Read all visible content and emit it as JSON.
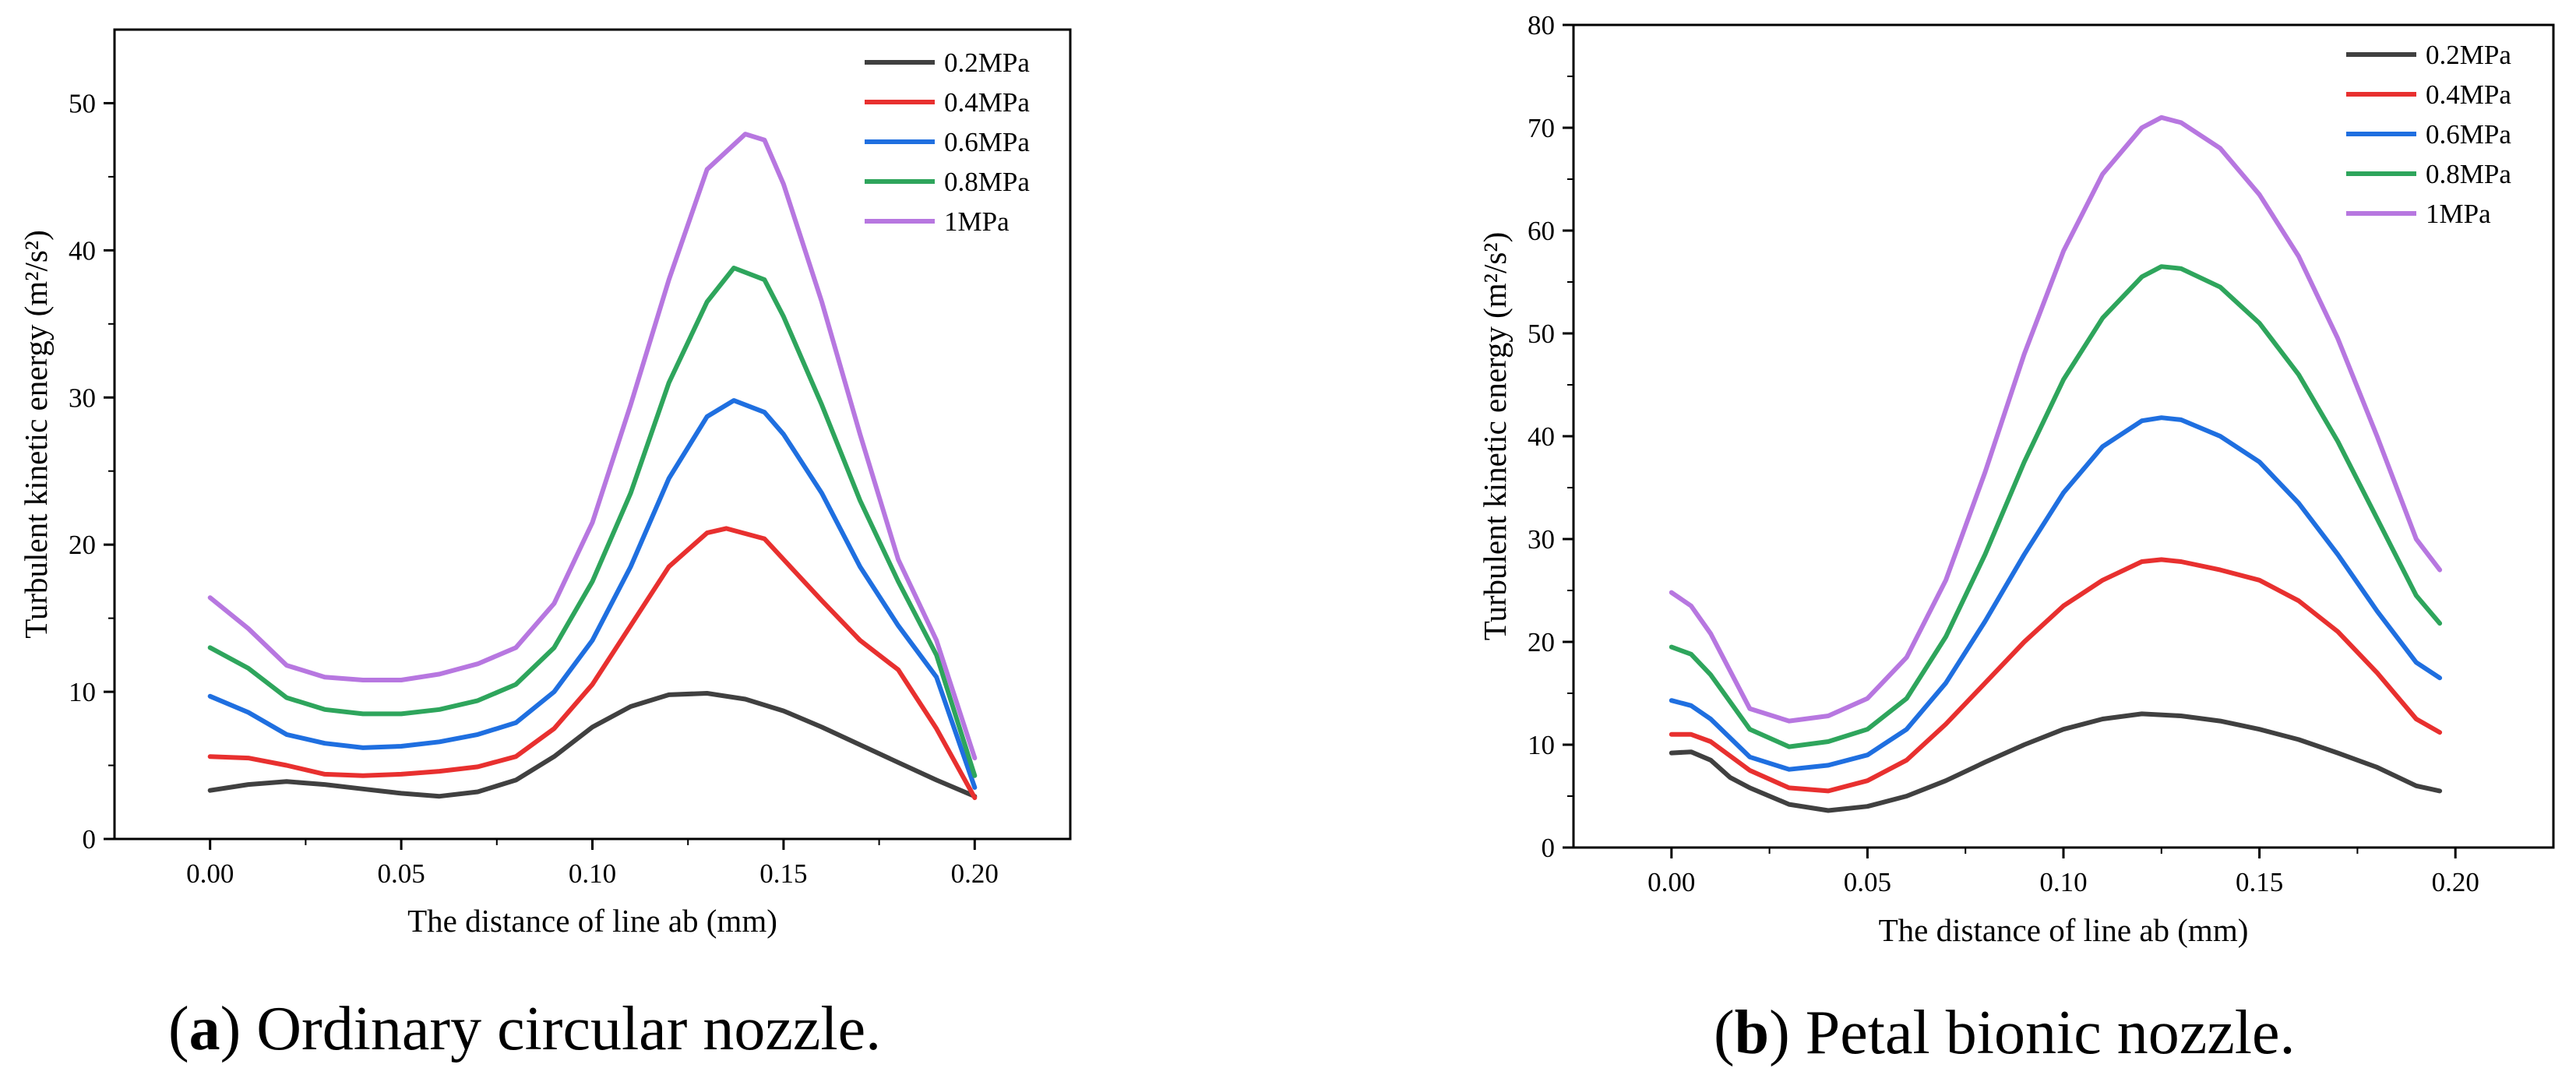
{
  "chart_data": [
    {
      "type": "line",
      "title": "",
      "xlabel": "The distance of line ab (mm)",
      "ylabel": "Turbulent kinetic energy (m²/s²)",
      "xlim": [
        -0.025,
        0.225
      ],
      "ylim": [
        0,
        55
      ],
      "x_ticks": [
        "0.00",
        "0.05",
        "0.10",
        "0.15",
        "0.20"
      ],
      "y_ticks": [
        "0",
        "10",
        "20",
        "30",
        "40",
        "50"
      ],
      "legend_position": "top-right",
      "caption": {
        "letter": "a",
        "text": ") Ordinary circular nozzle."
      },
      "series": [
        {
          "name": "0.2MPa",
          "color": "#404040",
          "points": [
            [
              0.0,
              3.3
            ],
            [
              0.01,
              3.7
            ],
            [
              0.02,
              3.9
            ],
            [
              0.03,
              3.7
            ],
            [
              0.04,
              3.4
            ],
            [
              0.05,
              3.1
            ],
            [
              0.06,
              2.9
            ],
            [
              0.07,
              3.2
            ],
            [
              0.08,
              4.0
            ],
            [
              0.09,
              5.6
            ],
            [
              0.1,
              7.6
            ],
            [
              0.11,
              9.0
            ],
            [
              0.12,
              9.8
            ],
            [
              0.13,
              9.9
            ],
            [
              0.14,
              9.5
            ],
            [
              0.15,
              8.7
            ],
            [
              0.16,
              7.6
            ],
            [
              0.17,
              6.4
            ],
            [
              0.18,
              5.2
            ],
            [
              0.19,
              4.0
            ],
            [
              0.2,
              2.9
            ]
          ]
        },
        {
          "name": "0.4MPa",
          "color": "#e8302f",
          "points": [
            [
              0.0,
              5.6
            ],
            [
              0.01,
              5.5
            ],
            [
              0.02,
              5.0
            ],
            [
              0.03,
              4.4
            ],
            [
              0.04,
              4.3
            ],
            [
              0.05,
              4.4
            ],
            [
              0.06,
              4.6
            ],
            [
              0.07,
              4.9
            ],
            [
              0.08,
              5.6
            ],
            [
              0.09,
              7.5
            ],
            [
              0.1,
              10.5
            ],
            [
              0.11,
              14.5
            ],
            [
              0.12,
              18.5
            ],
            [
              0.13,
              20.8
            ],
            [
              0.135,
              21.1
            ],
            [
              0.145,
              20.4
            ],
            [
              0.15,
              19.0
            ],
            [
              0.16,
              16.2
            ],
            [
              0.17,
              13.5
            ],
            [
              0.18,
              11.5
            ],
            [
              0.19,
              7.5
            ],
            [
              0.2,
              2.8
            ]
          ]
        },
        {
          "name": "0.6MPa",
          "color": "#1f6fe0",
          "points": [
            [
              0.0,
              9.7
            ],
            [
              0.01,
              8.6
            ],
            [
              0.02,
              7.1
            ],
            [
              0.03,
              6.5
            ],
            [
              0.04,
              6.2
            ],
            [
              0.05,
              6.3
            ],
            [
              0.06,
              6.6
            ],
            [
              0.07,
              7.1
            ],
            [
              0.08,
              7.9
            ],
            [
              0.09,
              10.0
            ],
            [
              0.1,
              13.5
            ],
            [
              0.11,
              18.5
            ],
            [
              0.12,
              24.5
            ],
            [
              0.13,
              28.7
            ],
            [
              0.137,
              29.8
            ],
            [
              0.145,
              29.0
            ],
            [
              0.15,
              27.5
            ],
            [
              0.16,
              23.5
            ],
            [
              0.17,
              18.5
            ],
            [
              0.18,
              14.5
            ],
            [
              0.19,
              11.0
            ],
            [
              0.2,
              3.5
            ]
          ]
        },
        {
          "name": "0.8MPa",
          "color": "#2ea55c",
          "points": [
            [
              0.0,
              13.0
            ],
            [
              0.01,
              11.6
            ],
            [
              0.02,
              9.6
            ],
            [
              0.03,
              8.8
            ],
            [
              0.04,
              8.5
            ],
            [
              0.05,
              8.5
            ],
            [
              0.06,
              8.8
            ],
            [
              0.07,
              9.4
            ],
            [
              0.08,
              10.5
            ],
            [
              0.09,
              13.0
            ],
            [
              0.1,
              17.5
            ],
            [
              0.11,
              23.5
            ],
            [
              0.12,
              31.0
            ],
            [
              0.13,
              36.5
            ],
            [
              0.137,
              38.8
            ],
            [
              0.145,
              38.0
            ],
            [
              0.15,
              35.5
            ],
            [
              0.16,
              29.5
            ],
            [
              0.17,
              23.0
            ],
            [
              0.18,
              17.5
            ],
            [
              0.19,
              12.5
            ],
            [
              0.2,
              4.3
            ]
          ]
        },
        {
          "name": "1MPa",
          "color": "#b777e0",
          "points": [
            [
              0.0,
              16.4
            ],
            [
              0.01,
              14.3
            ],
            [
              0.02,
              11.8
            ],
            [
              0.03,
              11.0
            ],
            [
              0.04,
              10.8
            ],
            [
              0.05,
              10.8
            ],
            [
              0.06,
              11.2
            ],
            [
              0.07,
              11.9
            ],
            [
              0.08,
              13.0
            ],
            [
              0.09,
              16.0
            ],
            [
              0.1,
              21.5
            ],
            [
              0.11,
              29.5
            ],
            [
              0.12,
              38.0
            ],
            [
              0.13,
              45.5
            ],
            [
              0.14,
              47.9
            ],
            [
              0.145,
              47.5
            ],
            [
              0.15,
              44.5
            ],
            [
              0.16,
              36.5
            ],
            [
              0.17,
              27.5
            ],
            [
              0.18,
              19.0
            ],
            [
              0.19,
              13.5
            ],
            [
              0.2,
              5.5
            ]
          ]
        }
      ]
    },
    {
      "type": "line",
      "title": "",
      "xlabel": "The distance of line ab (mm)",
      "ylabel": "Turbulent kinetic energy (m²/s²)",
      "xlim": [
        -0.025,
        0.225
      ],
      "ylim": [
        0,
        80
      ],
      "x_ticks": [
        "0.00",
        "0.05",
        "0.10",
        "0.15",
        "0.20"
      ],
      "y_ticks": [
        "0",
        "10",
        "20",
        "30",
        "40",
        "50",
        "60",
        "70",
        "80"
      ],
      "legend_position": "top-right",
      "caption": {
        "letter": "b",
        "text": ") Petal bionic nozzle."
      },
      "series": [
        {
          "name": "0.2MPa",
          "color": "#404040",
          "points": [
            [
              0.0,
              9.2
            ],
            [
              0.005,
              9.3
            ],
            [
              0.01,
              8.5
            ],
            [
              0.015,
              6.8
            ],
            [
              0.02,
              5.8
            ],
            [
              0.03,
              4.2
            ],
            [
              0.04,
              3.6
            ],
            [
              0.05,
              4.0
            ],
            [
              0.06,
              5.0
            ],
            [
              0.07,
              6.5
            ],
            [
              0.08,
              8.3
            ],
            [
              0.09,
              10.0
            ],
            [
              0.1,
              11.5
            ],
            [
              0.11,
              12.5
            ],
            [
              0.12,
              13.0
            ],
            [
              0.13,
              12.8
            ],
            [
              0.14,
              12.3
            ],
            [
              0.15,
              11.5
            ],
            [
              0.16,
              10.5
            ],
            [
              0.17,
              9.2
            ],
            [
              0.18,
              7.8
            ],
            [
              0.19,
              6.0
            ],
            [
              0.196,
              5.5
            ]
          ]
        },
        {
          "name": "0.4MPa",
          "color": "#e8302f",
          "points": [
            [
              0.0,
              11.0
            ],
            [
              0.005,
              11.0
            ],
            [
              0.01,
              10.3
            ],
            [
              0.02,
              7.5
            ],
            [
              0.03,
              5.8
            ],
            [
              0.04,
              5.5
            ],
            [
              0.05,
              6.5
            ],
            [
              0.06,
              8.5
            ],
            [
              0.07,
              12.0
            ],
            [
              0.08,
              16.0
            ],
            [
              0.09,
              20.0
            ],
            [
              0.1,
              23.5
            ],
            [
              0.11,
              26.0
            ],
            [
              0.12,
              27.8
            ],
            [
              0.125,
              28.0
            ],
            [
              0.13,
              27.8
            ],
            [
              0.14,
              27.0
            ],
            [
              0.15,
              26.0
            ],
            [
              0.16,
              24.0
            ],
            [
              0.17,
              21.0
            ],
            [
              0.18,
              17.0
            ],
            [
              0.19,
              12.5
            ],
            [
              0.196,
              11.2
            ]
          ]
        },
        {
          "name": "0.6MPa",
          "color": "#1f6fe0",
          "points": [
            [
              0.0,
              14.3
            ],
            [
              0.005,
              13.8
            ],
            [
              0.01,
              12.5
            ],
            [
              0.02,
              8.8
            ],
            [
              0.03,
              7.6
            ],
            [
              0.04,
              8.0
            ],
            [
              0.05,
              9.0
            ],
            [
              0.06,
              11.5
            ],
            [
              0.07,
              16.0
            ],
            [
              0.08,
              22.0
            ],
            [
              0.09,
              28.5
            ],
            [
              0.1,
              34.5
            ],
            [
              0.11,
              39.0
            ],
            [
              0.12,
              41.5
            ],
            [
              0.125,
              41.8
            ],
            [
              0.13,
              41.6
            ],
            [
              0.14,
              40.0
            ],
            [
              0.15,
              37.5
            ],
            [
              0.16,
              33.5
            ],
            [
              0.17,
              28.5
            ],
            [
              0.18,
              23.0
            ],
            [
              0.19,
              18.0
            ],
            [
              0.196,
              16.5
            ]
          ]
        },
        {
          "name": "0.8MPa",
          "color": "#2ea55c",
          "points": [
            [
              0.0,
              19.5
            ],
            [
              0.005,
              18.8
            ],
            [
              0.01,
              16.8
            ],
            [
              0.02,
              11.5
            ],
            [
              0.03,
              9.8
            ],
            [
              0.04,
              10.3
            ],
            [
              0.05,
              11.5
            ],
            [
              0.06,
              14.5
            ],
            [
              0.07,
              20.5
            ],
            [
              0.08,
              28.5
            ],
            [
              0.09,
              37.5
            ],
            [
              0.1,
              45.5
            ],
            [
              0.11,
              51.5
            ],
            [
              0.12,
              55.5
            ],
            [
              0.125,
              56.5
            ],
            [
              0.13,
              56.3
            ],
            [
              0.14,
              54.5
            ],
            [
              0.15,
              51.0
            ],
            [
              0.16,
              46.0
            ],
            [
              0.17,
              39.5
            ],
            [
              0.18,
              32.0
            ],
            [
              0.19,
              24.5
            ],
            [
              0.196,
              21.8
            ]
          ]
        },
        {
          "name": "1MPa",
          "color": "#b777e0",
          "points": [
            [
              0.0,
              24.8
            ],
            [
              0.005,
              23.5
            ],
            [
              0.01,
              20.8
            ],
            [
              0.02,
              13.5
            ],
            [
              0.03,
              12.3
            ],
            [
              0.04,
              12.8
            ],
            [
              0.05,
              14.5
            ],
            [
              0.06,
              18.5
            ],
            [
              0.07,
              26.0
            ],
            [
              0.08,
              36.5
            ],
            [
              0.09,
              48.0
            ],
            [
              0.1,
              58.0
            ],
            [
              0.11,
              65.5
            ],
            [
              0.12,
              70.0
            ],
            [
              0.125,
              71.0
            ],
            [
              0.13,
              70.5
            ],
            [
              0.14,
              68.0
            ],
            [
              0.15,
              63.5
            ],
            [
              0.16,
              57.5
            ],
            [
              0.17,
              49.5
            ],
            [
              0.18,
              40.0
            ],
            [
              0.19,
              30.0
            ],
            [
              0.196,
              27.0
            ]
          ]
        }
      ]
    }
  ]
}
